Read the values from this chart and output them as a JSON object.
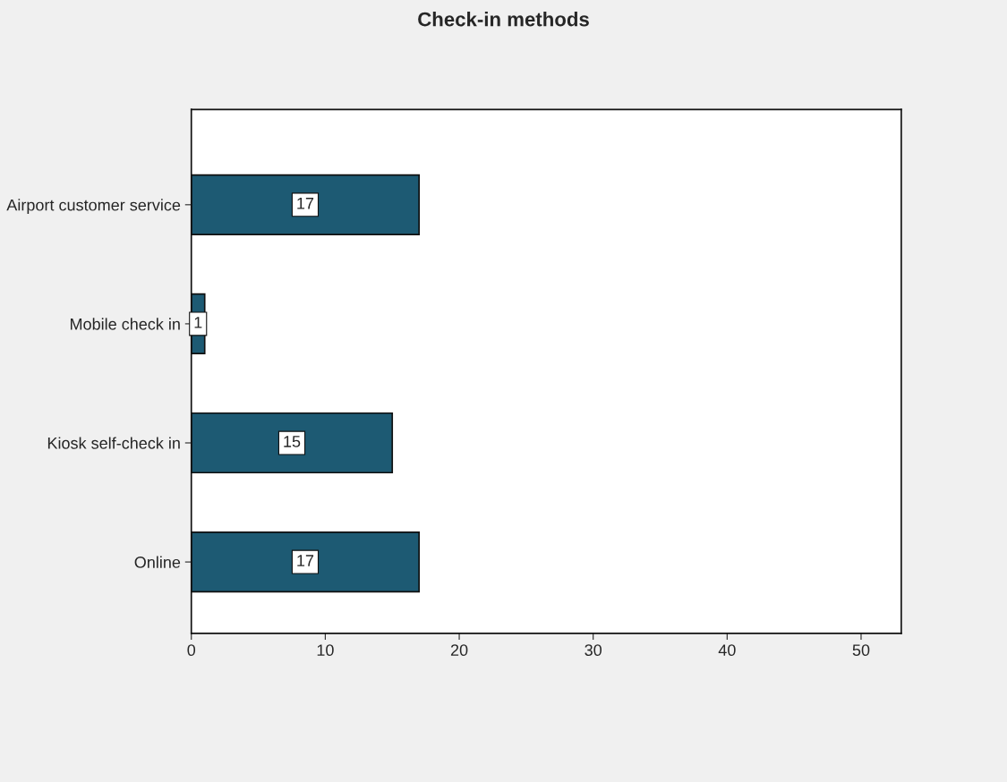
{
  "chart_data": {
    "type": "bar",
    "title": "Check-in methods",
    "orientation": "horizontal",
    "categories": [
      "Airport customer service",
      "Mobile check in",
      "Kiosk self-check in",
      "Online"
    ],
    "values": [
      17,
      1,
      15,
      17
    ],
    "color": "#1d5a73",
    "xlim": [
      0,
      53
    ],
    "xticks": [
      0,
      10,
      20,
      30,
      40,
      50
    ],
    "data_labels": true,
    "grid": false,
    "legend": false
  }
}
